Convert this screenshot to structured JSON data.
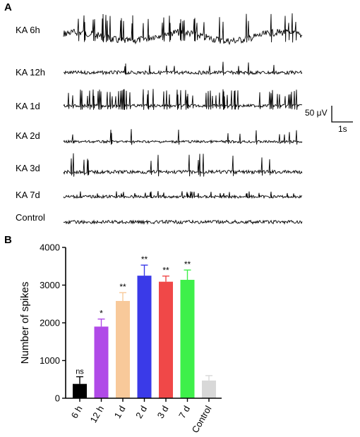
{
  "panel_a": {
    "letter": "A",
    "traces": [
      {
        "label": "KA 6h",
        "color": "#000000"
      },
      {
        "label": "KA 12h",
        "color": "#000000"
      },
      {
        "label": "KA 1d",
        "color": "#000000"
      },
      {
        "label": "KA 2d",
        "color": "#000000"
      },
      {
        "label": "KA 3d",
        "color": "#000000"
      },
      {
        "label": "KA 7d",
        "color": "#000000"
      },
      {
        "label": "Control",
        "color": "#000000"
      }
    ],
    "scale_bar": {
      "amplitude_label": "50 μV",
      "time_label": "1s"
    }
  },
  "panel_b": {
    "letter": "B"
  },
  "chart_data": {
    "type": "bar",
    "title": "",
    "xlabel": "",
    "ylabel": "Number of spikes",
    "ylim": [
      0,
      4000
    ],
    "yticks": [
      0,
      1000,
      2000,
      3000,
      4000
    ],
    "categories": [
      "6 h",
      "12 h",
      "1 d",
      "2 d",
      "3 d",
      "7 d",
      "Control"
    ],
    "values": [
      380,
      1900,
      2580,
      3250,
      3090,
      3140,
      470
    ],
    "errors": [
      190,
      200,
      220,
      280,
      150,
      260,
      130
    ],
    "significance": [
      "ns",
      "*",
      "**",
      "**",
      "**",
      "**",
      ""
    ],
    "colors": [
      "#000000",
      "#b04ae8",
      "#f8c99a",
      "#3a3ae8",
      "#f04848",
      "#3ef04a",
      "#d8d8d8"
    ],
    "grid": false
  }
}
